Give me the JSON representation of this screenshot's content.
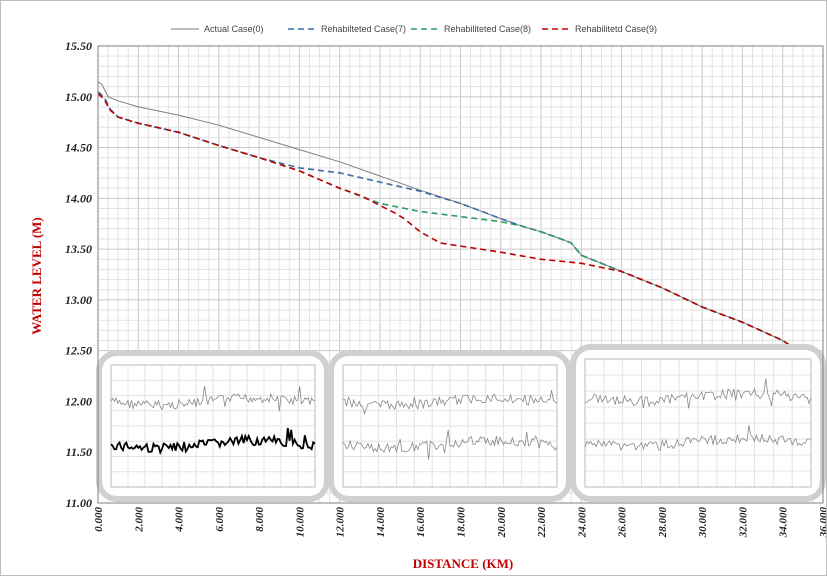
{
  "chart_data": {
    "type": "line",
    "xlabel": "DISTANCE (KM)",
    "ylabel": "WATER LEVEL (M)",
    "xlim": [
      0,
      36
    ],
    "ylim": [
      11.0,
      15.5
    ],
    "x_ticks": [
      "0.000",
      "2.000",
      "4.000",
      "6.000",
      "8.000",
      "10.000",
      "12.000",
      "14.000",
      "16.000",
      "18.000",
      "20.000",
      "22.000",
      "24.000",
      "26.000",
      "28.000",
      "30.000",
      "32.000",
      "34.000",
      "36.000"
    ],
    "y_ticks": [
      "15.50",
      "15.00",
      "14.50",
      "14.00",
      "13.50",
      "13.00",
      "12.50",
      "12.00",
      "11.50",
      "11.00"
    ],
    "grid": true,
    "legend_position": "top",
    "series": [
      {
        "name": "Actual Case(0)",
        "color": "#7f7f7f",
        "style": "solid",
        "x": [
          0,
          0.2,
          0.5,
          1,
          2,
          4,
          6,
          8,
          10,
          12,
          14,
          16,
          18,
          20,
          21,
          22,
          23,
          23.5,
          24,
          26,
          28,
          30,
          32,
          34,
          35.5
        ],
        "y": [
          15.15,
          15.12,
          15.0,
          14.96,
          14.9,
          14.82,
          14.72,
          14.6,
          14.48,
          14.36,
          14.22,
          14.08,
          13.95,
          13.8,
          13.73,
          13.67,
          13.6,
          13.56,
          13.44,
          13.28,
          13.12,
          12.93,
          12.78,
          12.6,
          12.4
        ]
      },
      {
        "name": "Rehabilteted Case(7)",
        "color": "#3d6aa8",
        "style": "dashed",
        "x": [
          0,
          0.3,
          0.6,
          1,
          2,
          4,
          6,
          8,
          10,
          12,
          14,
          16,
          18,
          20,
          21,
          22,
          23,
          23.5,
          24,
          26,
          28,
          30,
          32,
          34,
          35.5
        ],
        "y": [
          15.05,
          15.0,
          14.88,
          14.8,
          14.74,
          14.65,
          14.52,
          14.4,
          14.3,
          14.25,
          14.16,
          14.07,
          13.95,
          13.8,
          13.73,
          13.67,
          13.6,
          13.56,
          13.44,
          13.28,
          13.12,
          12.93,
          12.78,
          12.6,
          12.4
        ]
      },
      {
        "name": "Rehabiliteted Case(8)",
        "color": "#2e9a6b",
        "style": "dashed",
        "x": [
          0,
          0.3,
          0.6,
          1,
          2,
          4,
          6,
          8,
          10,
          12,
          14,
          16,
          18,
          20,
          21,
          22,
          23,
          23.5,
          24,
          26,
          28,
          30,
          32,
          34,
          35.5
        ],
        "y": [
          15.03,
          14.98,
          14.87,
          14.8,
          14.74,
          14.65,
          14.52,
          14.4,
          14.27,
          14.1,
          13.95,
          13.87,
          13.82,
          13.77,
          13.73,
          13.67,
          13.6,
          13.56,
          13.44,
          13.28,
          13.12,
          12.93,
          12.78,
          12.6,
          12.4
        ]
      },
      {
        "name": "Rehabilitetd Case(9)",
        "color": "#c00000",
        "style": "dashed",
        "x": [
          0,
          0.3,
          0.6,
          1,
          2,
          4,
          6,
          8,
          10,
          12,
          13,
          14,
          14.8,
          15.2,
          16,
          17,
          18,
          20,
          22,
          24,
          25,
          26,
          28,
          30,
          32,
          34,
          35.5
        ],
        "y": [
          15.03,
          14.98,
          14.87,
          14.8,
          14.74,
          14.65,
          14.52,
          14.4,
          14.27,
          14.1,
          14.03,
          13.93,
          13.85,
          13.8,
          13.67,
          13.56,
          13.53,
          13.47,
          13.4,
          13.36,
          13.32,
          13.28,
          13.12,
          12.93,
          12.78,
          12.6,
          12.4
        ]
      }
    ],
    "insets": [
      {
        "label": "inset-left",
        "series_count": 2
      },
      {
        "label": "inset-middle",
        "series_count": 2
      },
      {
        "label": "inset-right",
        "series_count": 2
      }
    ]
  }
}
